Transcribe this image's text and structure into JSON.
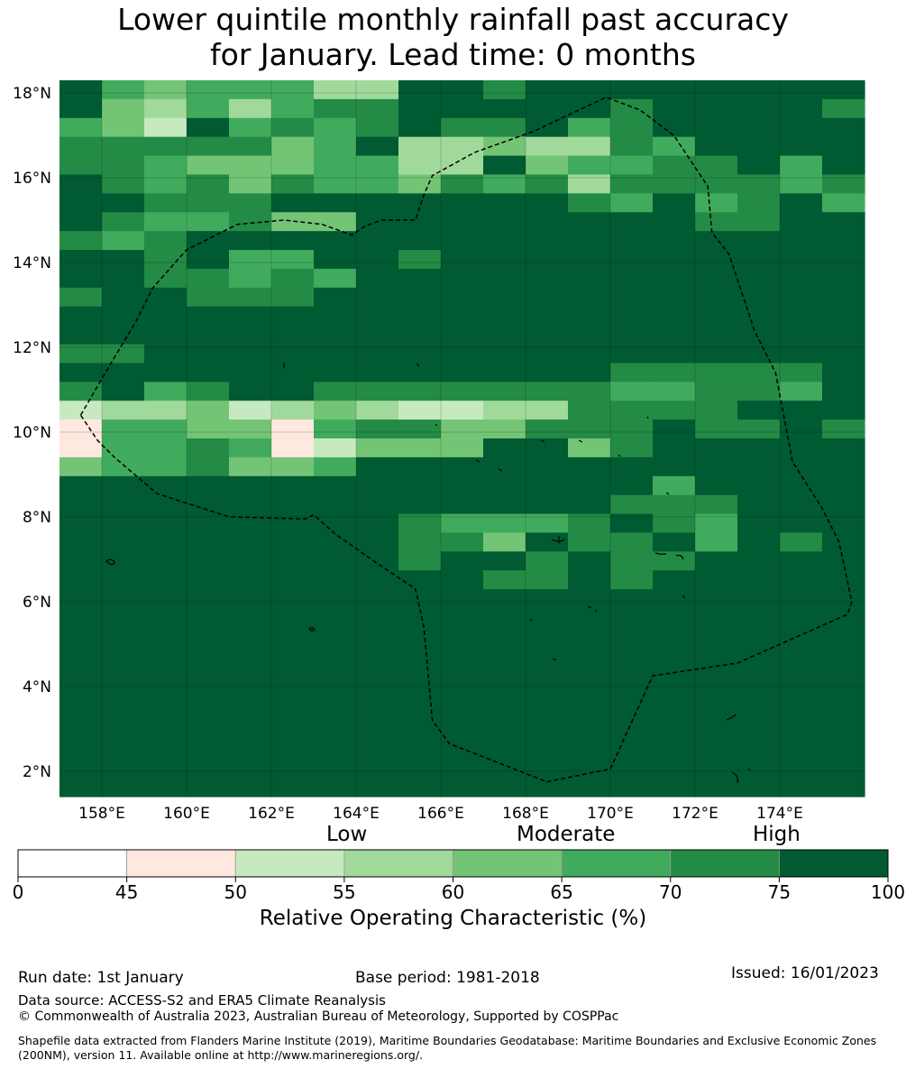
{
  "title": {
    "line1": "Lower quintile monthly rainfall past accuracy",
    "line2": "for January. Lead time: 0 months"
  },
  "map": {
    "lat_labels": [
      "18°N",
      "16°N",
      "14°N",
      "12°N",
      "10°N",
      "8°N",
      "6°N",
      "4°N",
      "2°N"
    ],
    "lon_labels": [
      "158°E",
      "160°E",
      "162°E",
      "164°E",
      "166°E",
      "168°E",
      "170°E",
      "172°E",
      "174°E"
    ],
    "lat_values": [
      18,
      16,
      14,
      12,
      10,
      8,
      6,
      4,
      2
    ],
    "lon_values": [
      158,
      160,
      162,
      164,
      166,
      168,
      170,
      172,
      174
    ],
    "extent": {
      "lon_min": 157,
      "lon_max": 176,
      "lat_min": 1.4,
      "lat_max": 18.3
    },
    "grid_rows": [
      "7545553377677777777",
      "7435356677777677776",
      "5427565676675677777",
      "6666645733433657777",
      "6654445533745566757",
      "7656465546563666656",
      "7766677777776575675",
      "7655644777777776677",
      "6567777777777777777",
      "7767557767777777777",
      "7766565777777777777",
      "6776667777777777777",
      "7777777777777777777",
      "7777777777777777777",
      "6677777777777777777",
      "7777777777777666667",
      "6756776666666556657",
      "2334234322336666777",
      "1554415664466676676",
      "1556512444774677777",
      "4556445777777777777",
      "7777777777777757777",
      "7777777777777666777",
      "7777777765556765777",
      "7777777766476675767",
      "7777777767767667777",
      "7777777777667677777",
      "7777777777777777777",
      "7777777777777777777",
      "7777777777777777777",
      "7777777777777777777",
      "7777777777777777777",
      "7777777777777777777",
      "7777777777777777777",
      "7777777777777777777",
      "7777777777777777777",
      "7777777777777777777",
      "7777777777777777777"
    ],
    "boundary": [
      [
        157.5,
        10.4
      ],
      [
        158.2,
        11.6
      ],
      [
        158.8,
        12.6
      ],
      [
        159.2,
        13.4
      ],
      [
        160,
        14.3
      ],
      [
        161.2,
        14.9
      ],
      [
        162.3,
        15
      ],
      [
        163.2,
        14.9
      ],
      [
        163.9,
        14.65
      ],
      [
        164.2,
        14.85
      ],
      [
        164.6,
        15
      ],
      [
        165.4,
        15
      ],
      [
        165.6,
        15.6
      ],
      [
        165.8,
        16.05
      ],
      [
        166.8,
        16.6
      ],
      [
        168.2,
        17.1
      ],
      [
        169.9,
        17.9
      ],
      [
        170.7,
        17.6
      ],
      [
        171.5,
        17
      ],
      [
        172.3,
        15.8
      ],
      [
        172.4,
        14.7
      ],
      [
        172.8,
        14.2
      ],
      [
        173.4,
        12.4
      ],
      [
        173.9,
        11.4
      ],
      [
        174.3,
        9.3
      ],
      [
        175,
        8.2
      ],
      [
        175.4,
        7.4
      ],
      [
        175.7,
        6
      ],
      [
        175.6,
        5.7
      ],
      [
        173,
        4.55
      ],
      [
        171,
        4.25
      ],
      [
        170,
        2.05
      ],
      [
        168.5,
        1.75
      ],
      [
        166.2,
        2.65
      ],
      [
        165.8,
        3.2
      ],
      [
        165.6,
        5.4
      ],
      [
        165.4,
        6.3
      ],
      [
        164.5,
        6.9
      ],
      [
        163.5,
        7.6
      ],
      [
        163,
        8.05
      ],
      [
        162.8,
        7.95
      ],
      [
        161,
        8
      ],
      [
        159.3,
        8.55
      ],
      [
        158.3,
        9.4
      ],
      [
        157.9,
        9.8
      ],
      [
        157.5,
        10.4
      ]
    ]
  },
  "colorbar": {
    "categories": [
      "Low",
      "Moderate",
      "High"
    ],
    "ticks": [
      "0",
      "45",
      "50",
      "55",
      "60",
      "65",
      "70",
      "75",
      "100"
    ],
    "colors": [
      "#ffffff",
      "#fee8df",
      "#c7e9c0",
      "#a1d99b",
      "#74c476",
      "#41ab5d",
      "#238b45",
      "#005a32"
    ],
    "label": "Relative Operating Characteristic (%)"
  },
  "footer": {
    "run_date": "Run date: 1st January",
    "base_period": "Base period: 1981-2018",
    "issued": "Issued: 16/01/2023",
    "data_source": "Data source: ACCESS-S2 and ERA5 Climate Reanalysis",
    "copyright": "© Commonwealth of Australia 2023, Australian Bureau of Meteorology, Supported by COSPPac",
    "shapefile": "Shapefile data extracted from Flanders Marine Institute (2019), Maritime Boundaries Geodatabase: Maritime Boundaries and Exclusive Economic Zones (200NM), version 11. Available online at http://www.marineregions.org/."
  }
}
